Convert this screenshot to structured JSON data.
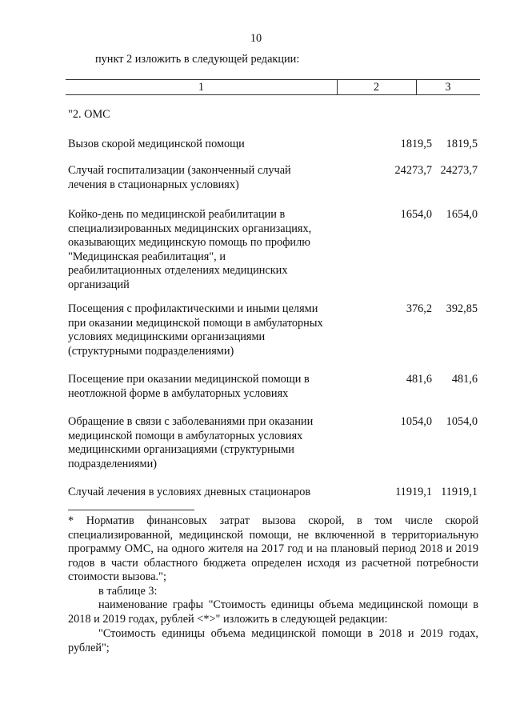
{
  "page_number": "10",
  "intro": "пункт 2 изложить в следующей редакции:",
  "table": {
    "headers": [
      "1",
      "2",
      "3"
    ],
    "section": "\"2. ОМС",
    "rows": [
      {
        "name": "Вызов скорой медицинской помощи",
        "col2": "1819,5",
        "col3": "1819,5"
      },
      {
        "name": "Случай госпитализации (законченный случай лечения в стационарных условиях)",
        "col2": "24273,7",
        "col3": "24273,7"
      },
      {
        "name": "Койко-день по медицинской реабилитации в специализированных медицинских организациях, оказывающих медицинскую помощь по профилю \"Медицинская реабилитация\", и реабилитационных отделениях медицинских организаций",
        "col2": "1654,0",
        "col3": "1654,0"
      },
      {
        "name": "Посещения с профилактическими и иными целями при оказании медицинской помощи в амбулаторных условиях медицинскими организациями (структурными подразделениями)",
        "col2": "376,2",
        "col3": "392,85"
      },
      {
        "name": "Посещение при оказании медицинской помощи в неотложной форме в амбулаторных условиях",
        "col2": "481,6",
        "col3": "481,6"
      },
      {
        "name": "Обращение в связи с заболеваниями при оказании медицинской помощи в амбулаторных условиях медицинскими организациями (структурными подразделениями)",
        "col2": "1054,0",
        "col3": "1054,0"
      },
      {
        "name": "Случай лечения в условиях дневных стационаров",
        "col2": "11919,1",
        "col3": "11919,1"
      }
    ]
  },
  "footnote": "* Норматив финансовых затрат вызова скорой, в том числе скорой специализированной, медицинской помощи, не включенной в территориальную программу ОМС, на одного жителя на 2017 год и на плановый период 2018 и 2019 годов в части областного бюджета определен исходя из расчетной потребности стоимости вызова.\";",
  "paragraphs": [
    "в таблице 3:",
    "наименование графы \"Стоимость единицы объема медицинской помощи в 2018 и 2019 годах, рублей <*>\" изложить в следующей редакции:",
    "\"Стоимость единицы объема медицинской помощи в 2018 и 2019 годах, рублей\";"
  ]
}
